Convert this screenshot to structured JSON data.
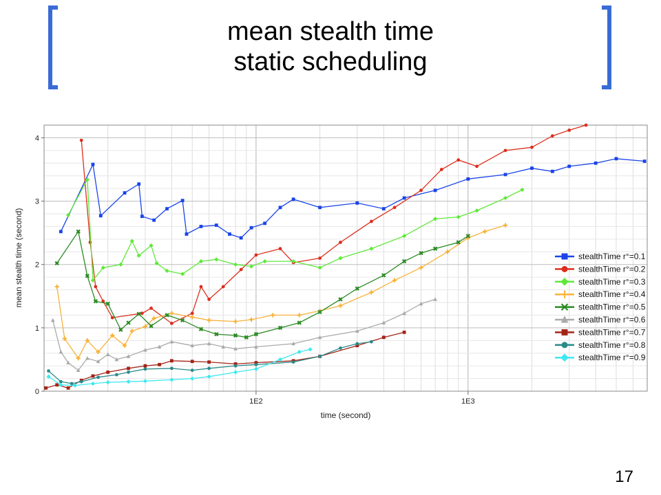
{
  "slide": {
    "title_line1": "mean stealth time",
    "title_line2": "static scheduling",
    "page_number": "17"
  },
  "chart_data": {
    "type": "line",
    "xlabel": "time (second)",
    "ylabel": "mean stealth time (second)",
    "xscale": "log",
    "xlim": [
      10,
      7000
    ],
    "ylim": [
      0,
      4.2
    ],
    "x_tick_labels": [
      "1E2",
      "1E3"
    ],
    "y_ticks": [
      0,
      1,
      2,
      3,
      4
    ],
    "grid": true,
    "legend_position": "right",
    "series": [
      {
        "name": "stealthTime r°=0.1",
        "color": "#1a44e8",
        "marker": "square",
        "points": [
          [
            12,
            2.52
          ],
          [
            17,
            3.58
          ],
          [
            18.5,
            2.77
          ],
          [
            24,
            3.13
          ],
          [
            28,
            3.27
          ],
          [
            29,
            2.76
          ],
          [
            33,
            2.7
          ],
          [
            38,
            2.88
          ],
          [
            45,
            3.01
          ],
          [
            47,
            2.48
          ],
          [
            55,
            2.6
          ],
          [
            65,
            2.62
          ],
          [
            75,
            2.48
          ],
          [
            85,
            2.42
          ],
          [
            95,
            2.58
          ],
          [
            110,
            2.65
          ],
          [
            130,
            2.9
          ],
          [
            150,
            3.03
          ],
          [
            200,
            2.9
          ],
          [
            300,
            2.97
          ],
          [
            400,
            2.88
          ],
          [
            500,
            3.05
          ],
          [
            700,
            3.17
          ],
          [
            1000,
            3.35
          ],
          [
            1500,
            3.42
          ],
          [
            2000,
            3.52
          ],
          [
            2500,
            3.47
          ],
          [
            3000,
            3.55
          ],
          [
            4000,
            3.6
          ],
          [
            5000,
            3.67
          ],
          [
            6800,
            3.63
          ]
        ]
      },
      {
        "name": "stealthTime r°=0.2",
        "color": "#dd2e1e",
        "marker": "circle",
        "points": [
          [
            15,
            3.96
          ],
          [
            16.5,
            2.35
          ],
          [
            17.5,
            1.65
          ],
          [
            19,
            1.42
          ],
          [
            21,
            1.16
          ],
          [
            29,
            1.23
          ],
          [
            32,
            1.31
          ],
          [
            40,
            1.07
          ],
          [
            50,
            1.23
          ],
          [
            55,
            1.65
          ],
          [
            60,
            1.45
          ],
          [
            70,
            1.65
          ],
          [
            85,
            1.92
          ],
          [
            100,
            2.15
          ],
          [
            130,
            2.25
          ],
          [
            150,
            2.03
          ],
          [
            200,
            2.1
          ],
          [
            250,
            2.35
          ],
          [
            350,
            2.68
          ],
          [
            450,
            2.9
          ],
          [
            600,
            3.17
          ],
          [
            750,
            3.5
          ],
          [
            900,
            3.65
          ],
          [
            1100,
            3.55
          ],
          [
            1500,
            3.8
          ],
          [
            2000,
            3.85
          ],
          [
            2500,
            4.03
          ],
          [
            3000,
            4.12
          ],
          [
            3600,
            4.2
          ]
        ]
      },
      {
        "name": "stealthTime r°=0.3",
        "color": "#5fe83a",
        "marker": "diamond",
        "points": [
          [
            13,
            2.78
          ],
          [
            16,
            3.34
          ],
          [
            17,
            1.75
          ],
          [
            19,
            1.95
          ],
          [
            23,
            2.0
          ],
          [
            26,
            2.37
          ],
          [
            28,
            2.14
          ],
          [
            32,
            2.3
          ],
          [
            34,
            2.02
          ],
          [
            38,
            1.9
          ],
          [
            45,
            1.85
          ],
          [
            55,
            2.05
          ],
          [
            65,
            2.08
          ],
          [
            80,
            2.0
          ],
          [
            95,
            1.97
          ],
          [
            110,
            2.05
          ],
          [
            150,
            2.05
          ],
          [
            200,
            1.95
          ],
          [
            250,
            2.1
          ],
          [
            350,
            2.25
          ],
          [
            500,
            2.45
          ],
          [
            700,
            2.72
          ],
          [
            900,
            2.75
          ],
          [
            1100,
            2.85
          ],
          [
            1500,
            3.05
          ],
          [
            1800,
            3.18
          ]
        ]
      },
      {
        "name": "stealthTime r°=0.4",
        "color": "#f7b23b",
        "marker": "plus",
        "points": [
          [
            11.5,
            1.65
          ],
          [
            12.5,
            0.83
          ],
          [
            14.5,
            0.52
          ],
          [
            16,
            0.8
          ],
          [
            18,
            0.62
          ],
          [
            21,
            0.88
          ],
          [
            24,
            0.72
          ],
          [
            26,
            0.95
          ],
          [
            30,
            1.02
          ],
          [
            33,
            1.15
          ],
          [
            40,
            1.23
          ],
          [
            50,
            1.17
          ],
          [
            60,
            1.12
          ],
          [
            80,
            1.1
          ],
          [
            95,
            1.13
          ],
          [
            120,
            1.2
          ],
          [
            160,
            1.2
          ],
          [
            200,
            1.27
          ],
          [
            250,
            1.35
          ],
          [
            350,
            1.56
          ],
          [
            450,
            1.75
          ],
          [
            600,
            1.95
          ],
          [
            800,
            2.2
          ],
          [
            1000,
            2.42
          ],
          [
            1200,
            2.52
          ],
          [
            1500,
            2.62
          ]
        ]
      },
      {
        "name": "stealthTime r°=0.5",
        "color": "#2a8a22",
        "marker": "x",
        "points": [
          [
            11.5,
            2.02
          ],
          [
            14.5,
            2.52
          ],
          [
            16,
            1.82
          ],
          [
            17.5,
            1.42
          ],
          [
            20,
            1.38
          ],
          [
            23,
            0.97
          ],
          [
            25,
            1.08
          ],
          [
            28,
            1.22
          ],
          [
            32,
            1.03
          ],
          [
            38,
            1.2
          ],
          [
            45,
            1.12
          ],
          [
            55,
            0.98
          ],
          [
            65,
            0.9
          ],
          [
            80,
            0.88
          ],
          [
            90,
            0.85
          ],
          [
            100,
            0.9
          ],
          [
            130,
            1.0
          ],
          [
            160,
            1.08
          ],
          [
            200,
            1.25
          ],
          [
            250,
            1.45
          ],
          [
            300,
            1.62
          ],
          [
            400,
            1.83
          ],
          [
            500,
            2.05
          ],
          [
            600,
            2.18
          ],
          [
            700,
            2.25
          ],
          [
            900,
            2.35
          ],
          [
            1000,
            2.45
          ]
        ]
      },
      {
        "name": "stealthTime r°=0.6",
        "color": "#aaaaaa",
        "marker": "triangle",
        "points": [
          [
            11,
            1.12
          ],
          [
            12,
            0.62
          ],
          [
            13,
            0.45
          ],
          [
            14.5,
            0.33
          ],
          [
            16,
            0.52
          ],
          [
            18,
            0.47
          ],
          [
            20,
            0.58
          ],
          [
            22,
            0.5
          ],
          [
            25,
            0.55
          ],
          [
            30,
            0.65
          ],
          [
            35,
            0.7
          ],
          [
            40,
            0.78
          ],
          [
            50,
            0.72
          ],
          [
            60,
            0.75
          ],
          [
            70,
            0.7
          ],
          [
            80,
            0.67
          ],
          [
            100,
            0.7
          ],
          [
            150,
            0.75
          ],
          [
            200,
            0.85
          ],
          [
            300,
            0.95
          ],
          [
            400,
            1.08
          ],
          [
            500,
            1.23
          ],
          [
            600,
            1.38
          ],
          [
            700,
            1.45
          ]
        ]
      },
      {
        "name": "stealthTime r°=0.7",
        "color": "#a32416",
        "marker": "square",
        "points": [
          [
            10.2,
            0.05
          ],
          [
            11.5,
            0.1
          ],
          [
            13,
            0.05
          ],
          [
            15,
            0.17
          ],
          [
            17,
            0.24
          ],
          [
            20,
            0.3
          ],
          [
            25,
            0.36
          ],
          [
            30,
            0.4
          ],
          [
            35,
            0.42
          ],
          [
            40,
            0.48
          ],
          [
            50,
            0.47
          ],
          [
            60,
            0.46
          ],
          [
            80,
            0.43
          ],
          [
            100,
            0.45
          ],
          [
            150,
            0.48
          ],
          [
            200,
            0.55
          ],
          [
            300,
            0.72
          ],
          [
            400,
            0.85
          ],
          [
            500,
            0.93
          ]
        ]
      },
      {
        "name": "stealthTime r°=0.8",
        "color": "#2a8a8a",
        "marker": "circle",
        "points": [
          [
            10.5,
            0.32
          ],
          [
            12,
            0.15
          ],
          [
            13.5,
            0.12
          ],
          [
            15,
            0.15
          ],
          [
            18,
            0.22
          ],
          [
            22,
            0.26
          ],
          [
            25,
            0.3
          ],
          [
            30,
            0.35
          ],
          [
            40,
            0.36
          ],
          [
            50,
            0.33
          ],
          [
            60,
            0.36
          ],
          [
            80,
            0.4
          ],
          [
            100,
            0.42
          ],
          [
            150,
            0.46
          ],
          [
            200,
            0.55
          ],
          [
            250,
            0.68
          ],
          [
            300,
            0.75
          ],
          [
            350,
            0.78
          ]
        ]
      },
      {
        "name": "stealthTime r°=0.9",
        "color": "#3fe8f0",
        "marker": "diamond",
        "points": [
          [
            10.5,
            0.23
          ],
          [
            12,
            0.1
          ],
          [
            14,
            0.09
          ],
          [
            17,
            0.12
          ],
          [
            20,
            0.14
          ],
          [
            25,
            0.15
          ],
          [
            30,
            0.16
          ],
          [
            40,
            0.18
          ],
          [
            50,
            0.2
          ],
          [
            60,
            0.23
          ],
          [
            80,
            0.3
          ],
          [
            100,
            0.35
          ],
          [
            130,
            0.5
          ],
          [
            160,
            0.62
          ],
          [
            180,
            0.66
          ]
        ]
      }
    ]
  }
}
